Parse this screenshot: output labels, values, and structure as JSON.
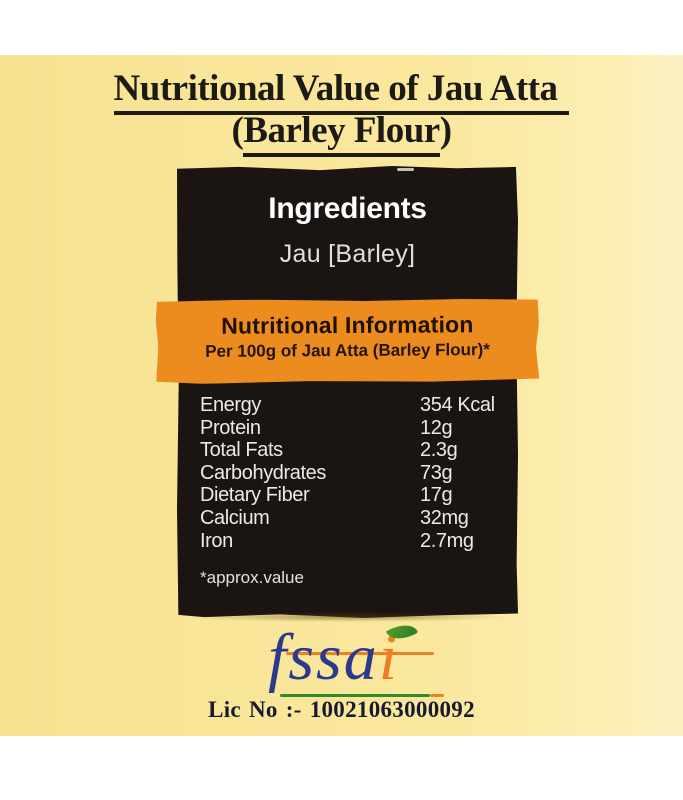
{
  "title": {
    "line1": "Nutritional Value of Jau Atta",
    "line2_prefix": "(",
    "line2_underlined": "Barley Flour",
    "line2_suffix": ")"
  },
  "ingredients": {
    "heading": "Ingredients",
    "item": "Jau [Barley]"
  },
  "banner": {
    "title": "Nutritional Information",
    "subtitle": "Per 100g of Jau Atta (Barley Flour)*"
  },
  "nutrition": {
    "rows": [
      {
        "label": "Energy",
        "value": "354 Kcal"
      },
      {
        "label": "Protein",
        "value": "12g"
      },
      {
        "label": "Total Fats",
        "value": "2.3g"
      },
      {
        "label": "Carbohydrates",
        "value": "73g"
      },
      {
        "label": "Dietary Fiber",
        "value": "17g"
      },
      {
        "label": "Calcium",
        "value": "32mg"
      },
      {
        "label": "Iron",
        "value": "2.7mg"
      }
    ],
    "footnote": "*approx.value"
  },
  "fssai": {
    "word_main": "fssa",
    "word_i": "i"
  },
  "license": {
    "text": "Lic No :- 10021063000092"
  },
  "colors": {
    "background_yellow": "#fae89c",
    "panel_black": "#1a1512",
    "banner_orange": "#ec8b1e",
    "fssai_blue": "#2b3a8d",
    "fssai_orange": "#ee7d26",
    "fssai_green": "#2f8a27"
  }
}
